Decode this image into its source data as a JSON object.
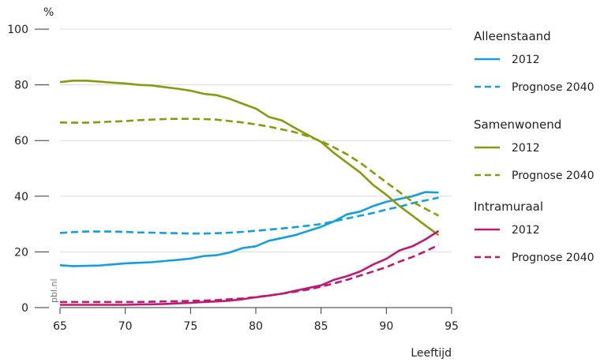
{
  "chart_data": {
    "type": "line",
    "title": "",
    "ylabel": "%",
    "xlabel": "Leeftijd",
    "xlim": [
      65,
      95
    ],
    "ylim": [
      0,
      100
    ],
    "x_ticks": [
      "65",
      "70",
      "75",
      "80",
      "85",
      "90",
      "95"
    ],
    "y_ticks": [
      "0",
      "20",
      "40",
      "60",
      "80",
      "100"
    ],
    "grid": "horizontal",
    "legend_position": "right",
    "watermark": "pbl.nl",
    "legend_groups": [
      {
        "label": "Alleenstaand",
        "entries": [
          "2012",
          "Prognose 2040"
        ]
      },
      {
        "label": "Samenwonend",
        "entries": [
          "2012",
          "Prognose 2040"
        ]
      },
      {
        "label": "Intramuraal",
        "entries": [
          "2012",
          "Prognose 2040"
        ]
      }
    ],
    "x": [
      65,
      66,
      67,
      68,
      69,
      70,
      71,
      72,
      73,
      74,
      75,
      76,
      77,
      78,
      79,
      80,
      81,
      82,
      83,
      84,
      85,
      86,
      87,
      88,
      89,
      90,
      91,
      92,
      93,
      94
    ],
    "series": [
      {
        "group": "Alleenstaand",
        "name": "2012",
        "color": "#139fdc",
        "style": "solid",
        "values": [
          15.2,
          14.9,
          15.0,
          15.1,
          15.5,
          15.9,
          16.1,
          16.3,
          16.7,
          17.1,
          17.6,
          18.5,
          18.8,
          19.8,
          21.4,
          22.0,
          24.0,
          25.0,
          26.0,
          27.5,
          29.0,
          31.0,
          33.5,
          34.5,
          36.5,
          38.0,
          39.0,
          40.0,
          41.5,
          41.3
        ]
      },
      {
        "group": "Alleenstaand",
        "name": "Prognose 2040",
        "color": "#139fdc",
        "style": "dashed",
        "values": [
          26.8,
          27.1,
          27.3,
          27.3,
          27.3,
          27.2,
          27.0,
          26.9,
          26.8,
          26.7,
          26.6,
          26.6,
          26.7,
          26.9,
          27.2,
          27.6,
          28.0,
          28.4,
          28.9,
          29.4,
          30.0,
          31.0,
          32.0,
          33.0,
          34.0,
          35.2,
          36.2,
          37.5,
          38.5,
          39.5
        ]
      },
      {
        "group": "Samenwonend",
        "name": "2012",
        "color": "#8a9a0e",
        "style": "solid",
        "values": [
          81.0,
          81.5,
          81.5,
          81.2,
          80.8,
          80.5,
          80.0,
          79.8,
          79.2,
          78.6,
          77.9,
          76.8,
          76.3,
          75.0,
          73.2,
          71.5,
          68.5,
          67.2,
          64.5,
          62.0,
          59.5,
          55.5,
          52.0,
          48.5,
          44.0,
          40.5,
          36.5,
          33.0,
          29.5,
          26.0
        ]
      },
      {
        "group": "Samenwonend",
        "name": "Prognose 2040",
        "color": "#8a9a0e",
        "style": "dashed",
        "values": [
          66.5,
          66.4,
          66.4,
          66.6,
          66.8,
          67.0,
          67.3,
          67.5,
          67.7,
          67.8,
          67.8,
          67.7,
          67.5,
          67.0,
          66.5,
          65.8,
          65.0,
          64.0,
          63.0,
          61.5,
          59.8,
          57.5,
          55.0,
          52.0,
          48.5,
          45.0,
          41.5,
          38.0,
          35.5,
          33.0
        ]
      },
      {
        "group": "Intramuraal",
        "name": "2012",
        "color": "#bd1b72",
        "style": "solid",
        "values": [
          1.0,
          1.0,
          1.0,
          1.0,
          1.0,
          1.0,
          1.1,
          1.2,
          1.3,
          1.5,
          1.7,
          2.0,
          2.2,
          2.5,
          3.0,
          3.7,
          4.3,
          5.0,
          6.0,
          7.0,
          8.0,
          10.0,
          11.3,
          13.0,
          15.5,
          17.5,
          20.5,
          22.0,
          24.5,
          27.5
        ]
      },
      {
        "group": "Intramuraal",
        "name": "Prognose 2040",
        "color": "#bd1b72",
        "style": "dashed",
        "values": [
          2.0,
          2.0,
          2.0,
          2.0,
          2.0,
          2.0,
          2.0,
          2.1,
          2.2,
          2.3,
          2.4,
          2.5,
          2.7,
          3.0,
          3.3,
          3.8,
          4.3,
          5.0,
          5.7,
          6.5,
          7.5,
          8.7,
          10.0,
          11.5,
          13.0,
          14.5,
          16.5,
          18.2,
          20.2,
          22.5
        ]
      }
    ]
  }
}
